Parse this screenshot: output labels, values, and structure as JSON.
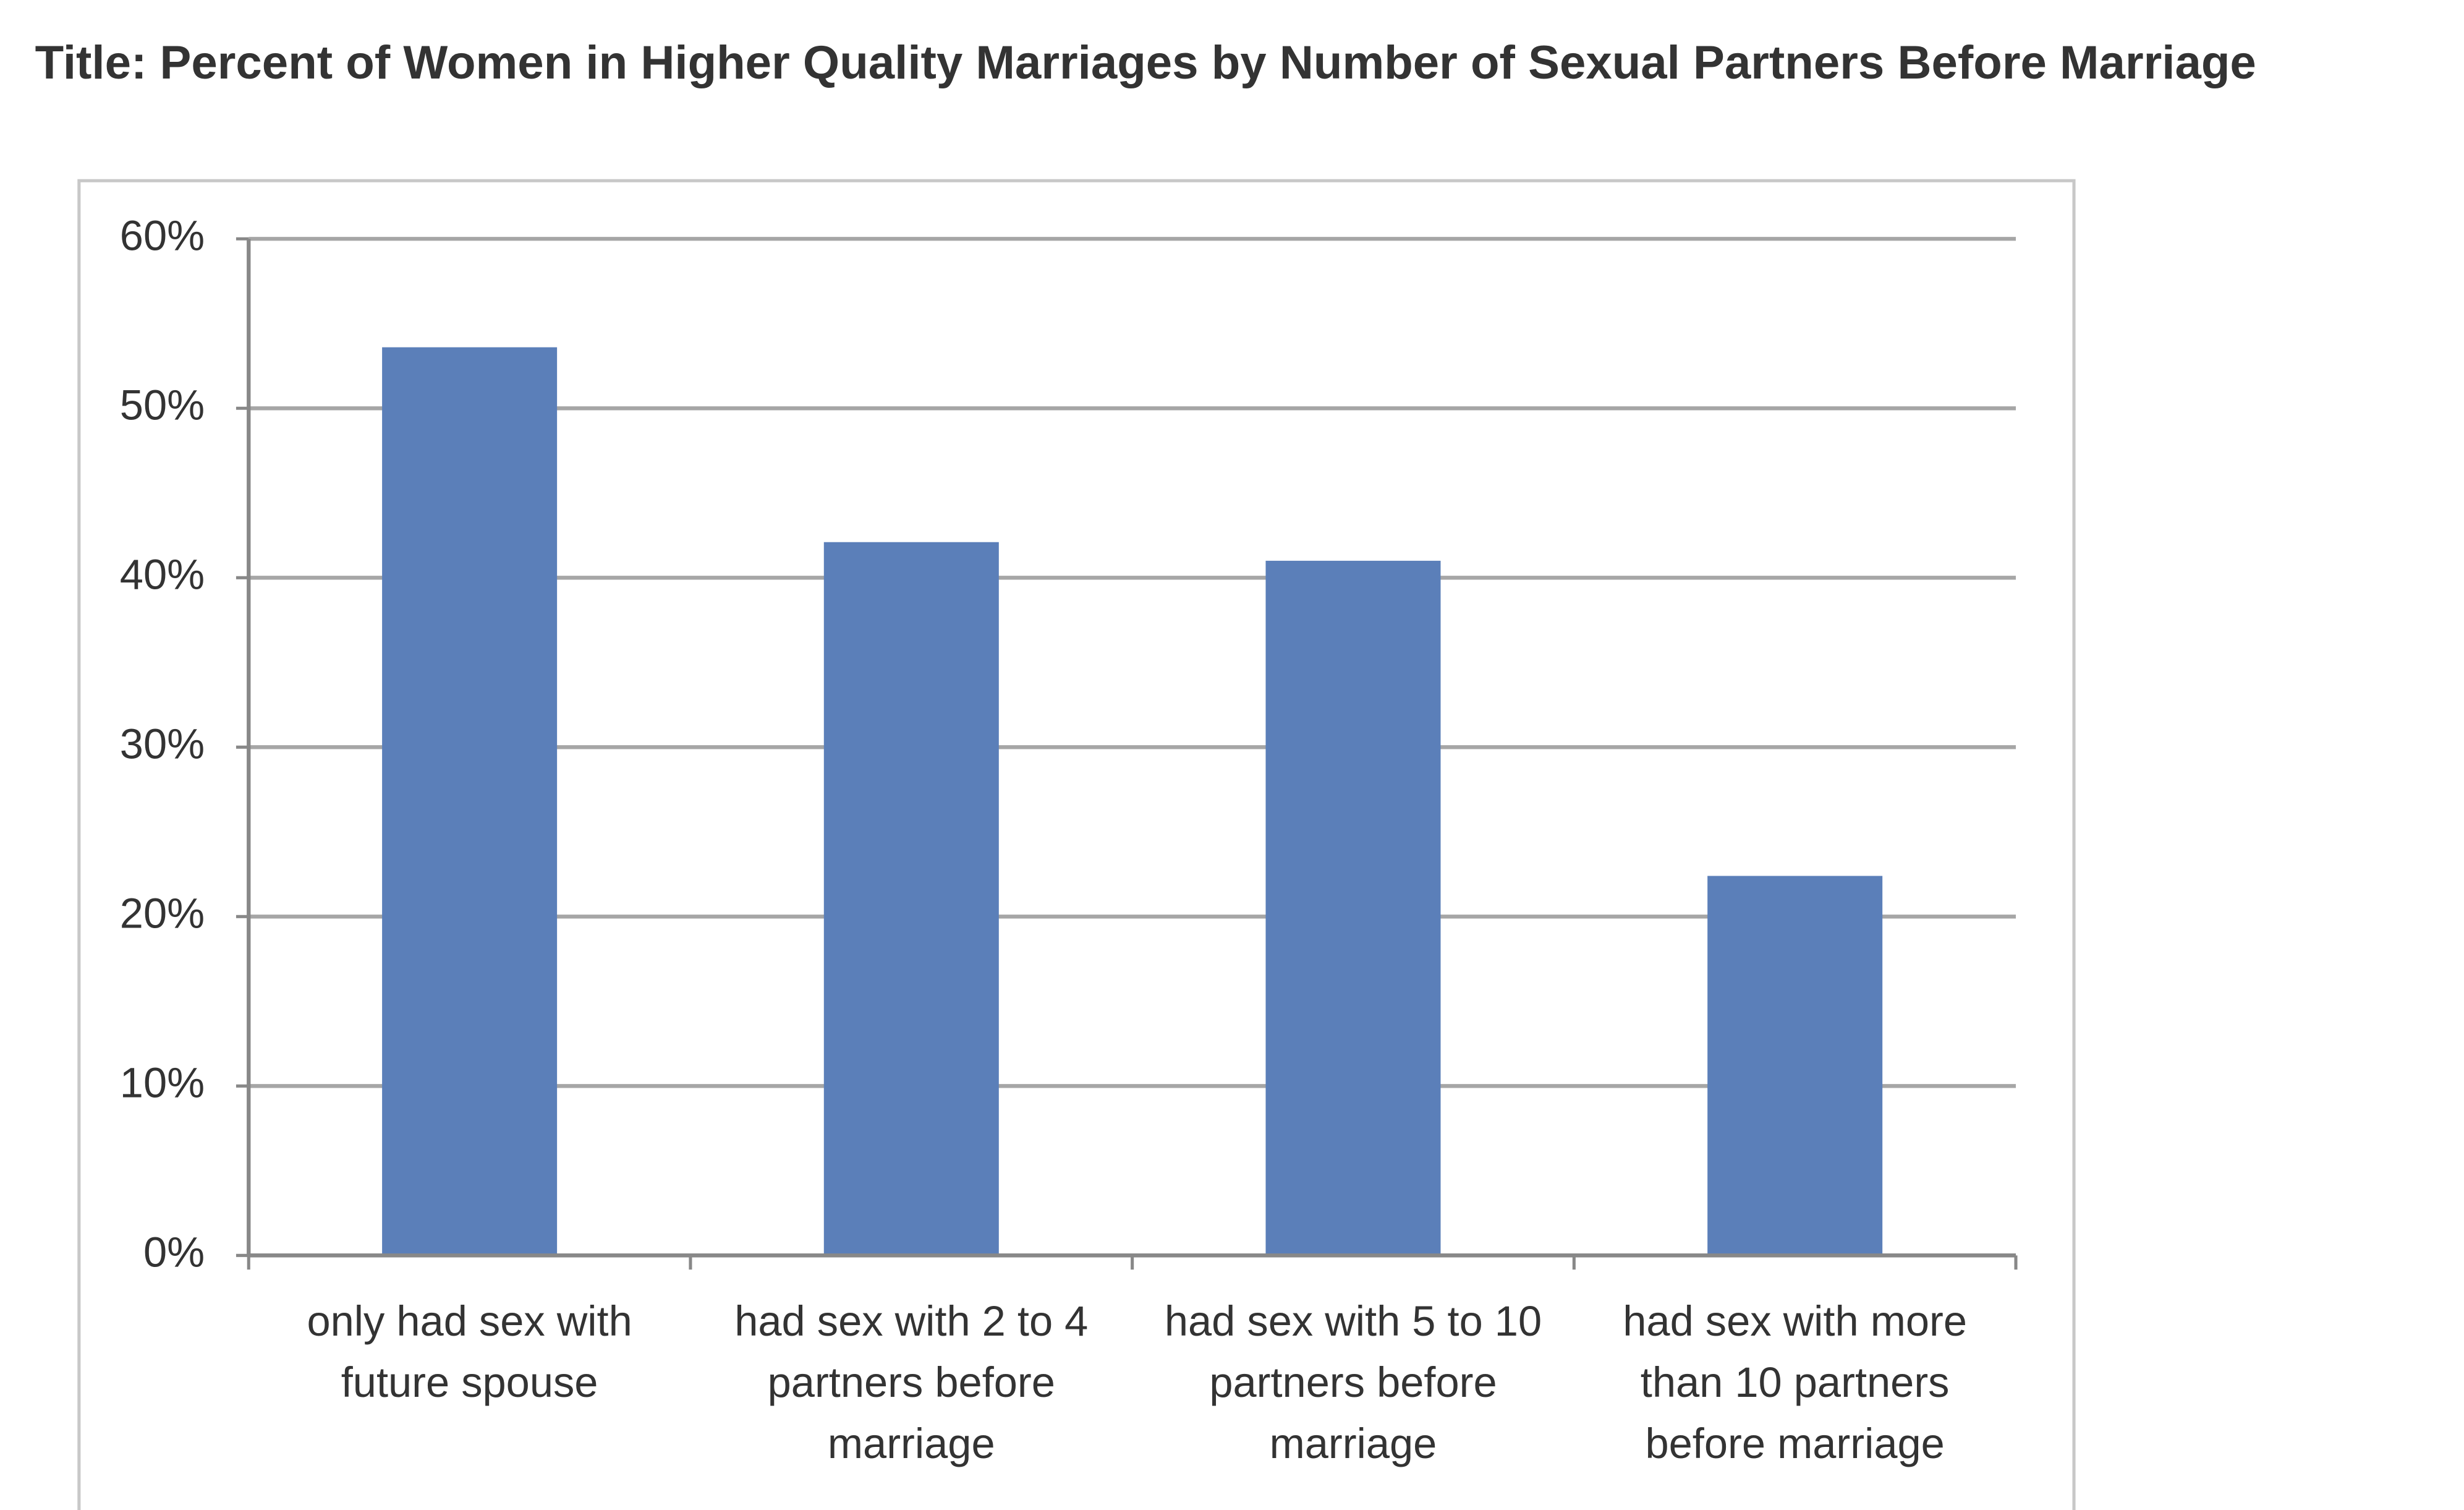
{
  "chart_data": {
    "type": "bar",
    "title": "Title: Percent of Women in Higher Quality Marriages by Number of Sexual Partners Before Marriage",
    "categories": [
      "only had sex with future spouse",
      "had sex with 2 to 4 partners before marriage",
      "had sex with 5 to 10 partners before marriage",
      "had sex with more than 10 partners before marriage"
    ],
    "values": [
      53.6,
      42.1,
      41,
      22.4
    ],
    "color": "#5b7fb9",
    "ylim": [
      0,
      60
    ],
    "yticks": [
      {
        "value": 0,
        "label": "0%"
      },
      {
        "value": 10,
        "label": "10%"
      },
      {
        "value": 20,
        "label": "20%"
      },
      {
        "value": 30,
        "label": "30%"
      },
      {
        "value": 40,
        "label": "40%"
      },
      {
        "value": 50,
        "label": "50%"
      },
      {
        "value": 60,
        "label": "60%"
      }
    ],
    "grid": true
  }
}
